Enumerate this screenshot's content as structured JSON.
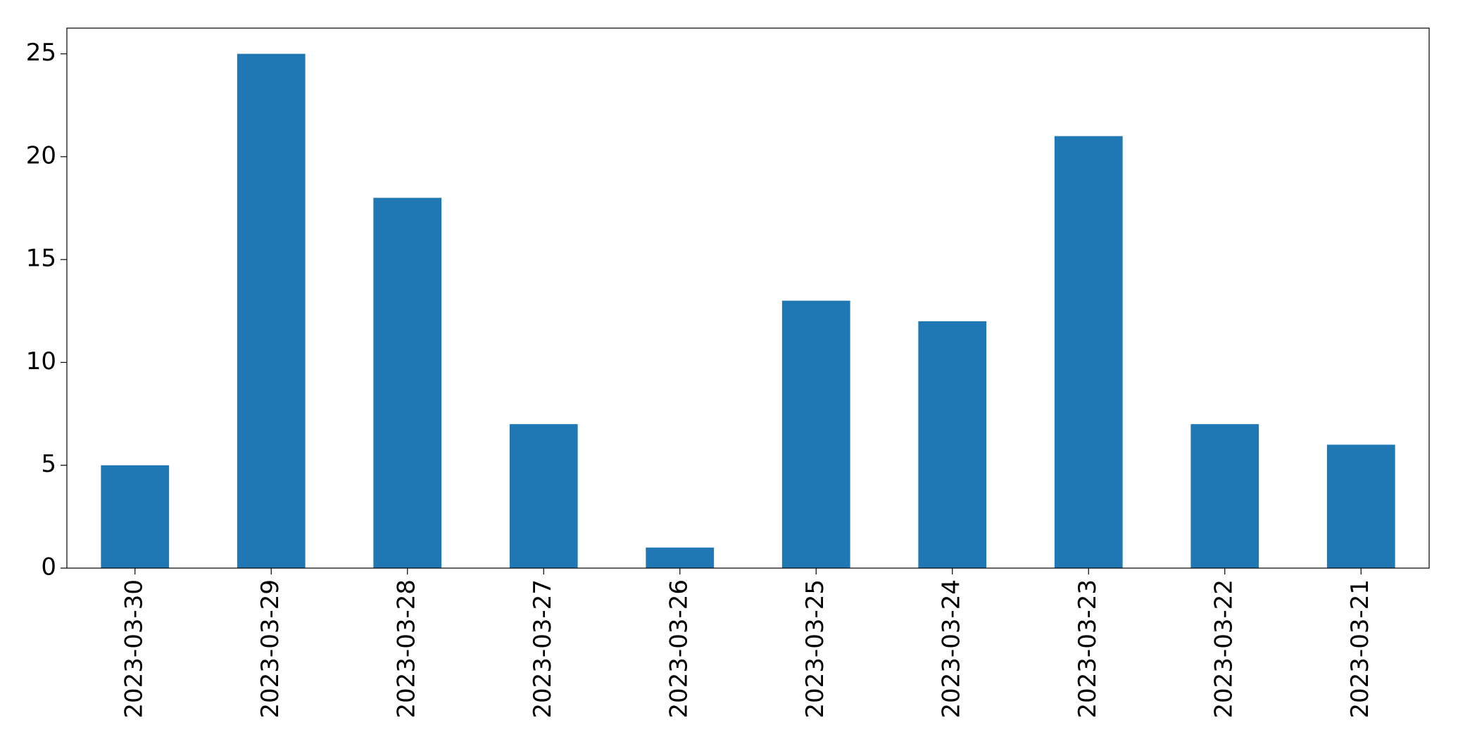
{
  "chart_data": {
    "type": "bar",
    "categories": [
      "2023-03-30",
      "2023-03-29",
      "2023-03-28",
      "2023-03-27",
      "2023-03-26",
      "2023-03-25",
      "2023-03-24",
      "2023-03-23",
      "2023-03-22",
      "2023-03-21"
    ],
    "values": [
      5,
      25,
      18,
      7,
      1,
      13,
      12,
      21,
      7,
      6
    ],
    "color": "#1f77b4",
    "ylim": [
      0,
      26.25
    ],
    "yticks": [
      0,
      5,
      10,
      15,
      20,
      25
    ],
    "grid": false
  }
}
